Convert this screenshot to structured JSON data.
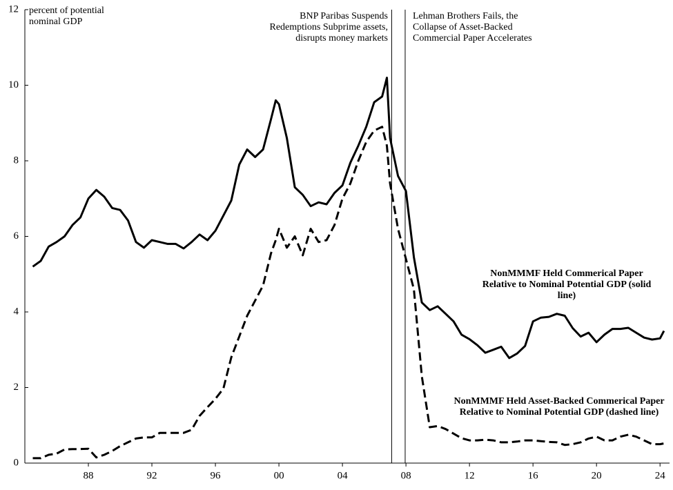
{
  "chart_data": {
    "type": "line",
    "y_unit_label": "percent of potential nominal GDP",
    "x": [
      1984.5,
      1985,
      1985.5,
      1986,
      1986.5,
      1987,
      1987.5,
      1988,
      1988.5,
      1989,
      1989.5,
      1990,
      1990.5,
      1991,
      1991.5,
      1992,
      1992.5,
      1993,
      1993.5,
      1994,
      1994.5,
      1995,
      1995.5,
      1996,
      1996.5,
      1997,
      1997.5,
      1998,
      1998.5,
      1999,
      1999.5,
      1999.8,
      2000,
      2000.5,
      2001,
      2001.5,
      2002,
      2002.5,
      2003,
      2003.5,
      2004,
      2004.5,
      2005,
      2005.5,
      2006,
      2006.5,
      2006.8,
      2007,
      2007.5,
      2008,
      2008.5,
      2009,
      2009.5,
      2010,
      2010.5,
      2011,
      2011.5,
      2012,
      2012.5,
      2013,
      2013.5,
      2014,
      2014.5,
      2015,
      2015.5,
      2016,
      2016.5,
      2017,
      2017.5,
      2018,
      2018.5,
      2019,
      2019.5,
      2020,
      2020.5,
      2021,
      2021.5,
      2022,
      2022.5,
      2023,
      2023.5,
      2024,
      2024.25
    ],
    "series": [
      {
        "name": "NonMMMF Held Commerical Paper Relative to Nominal Potential GDP (solid line)",
        "color": "#000000",
        "line_style": "solid",
        "values": [
          5.2,
          5.35,
          5.73,
          5.85,
          6.0,
          6.3,
          6.5,
          7.0,
          7.23,
          7.05,
          6.75,
          6.7,
          6.42,
          5.85,
          5.7,
          5.9,
          5.85,
          5.8,
          5.8,
          5.68,
          5.85,
          6.05,
          5.9,
          6.15,
          6.55,
          6.95,
          7.9,
          8.3,
          8.1,
          8.3,
          9.1,
          9.6,
          9.5,
          8.6,
          7.3,
          7.1,
          6.8,
          6.9,
          6.85,
          7.15,
          7.35,
          7.95,
          8.4,
          8.9,
          9.55,
          9.7,
          10.2,
          8.6,
          7.6,
          7.2,
          5.45,
          4.25,
          4.05,
          4.15,
          3.95,
          3.75,
          3.4,
          3.28,
          3.12,
          2.92,
          3.0,
          3.08,
          2.78,
          2.9,
          3.1,
          3.75,
          3.85,
          3.87,
          3.95,
          3.9,
          3.57,
          3.35,
          3.45,
          3.2,
          3.4,
          3.55,
          3.55,
          3.58,
          3.45,
          3.32,
          3.27,
          3.3,
          3.5
        ]
      },
      {
        "name": "NonMMMF Held Asset-Backed Commerical Paper Relative to Nominal Potential GDP (dashed line)",
        "color": "#000000",
        "line_style": "dashed",
        "values": [
          0.13,
          0.13,
          0.22,
          0.25,
          0.36,
          0.37,
          0.37,
          0.38,
          0.15,
          0.22,
          0.32,
          0.45,
          0.55,
          0.65,
          0.68,
          0.68,
          0.8,
          0.8,
          0.8,
          0.8,
          0.88,
          1.25,
          1.48,
          1.7,
          1.97,
          2.8,
          3.35,
          3.9,
          4.3,
          4.7,
          5.55,
          5.9,
          6.2,
          5.7,
          6.0,
          5.5,
          6.2,
          5.85,
          5.9,
          6.3,
          7.0,
          7.4,
          8.0,
          8.5,
          8.8,
          8.9,
          8.4,
          7.4,
          6.2,
          5.4,
          4.6,
          2.3,
          0.95,
          0.98,
          0.9,
          0.78,
          0.66,
          0.6,
          0.6,
          0.62,
          0.6,
          0.55,
          0.55,
          0.57,
          0.6,
          0.6,
          0.58,
          0.56,
          0.55,
          0.48,
          0.5,
          0.55,
          0.65,
          0.7,
          0.6,
          0.6,
          0.7,
          0.75,
          0.7,
          0.6,
          0.5,
          0.5,
          0.52
        ]
      }
    ],
    "events": [
      {
        "x": 2007.1,
        "label": "BNP Paribas Suspends Redemptions Subprime assets, disrupts money markets"
      },
      {
        "x": 2007.95,
        "label": "Lehman Brothers Fails, the Collapse of Asset-Backed Commercial Paper Accelerates"
      }
    ],
    "xlim": [
      1984,
      2024.6
    ],
    "ylim": [
      0,
      12
    ],
    "xticks": [
      {
        "value": 1988,
        "label": "88"
      },
      {
        "value": 1992,
        "label": "92"
      },
      {
        "value": 1996,
        "label": "96"
      },
      {
        "value": 2000,
        "label": "00"
      },
      {
        "value": 2004,
        "label": "04"
      },
      {
        "value": 2008,
        "label": "08"
      },
      {
        "value": 2012,
        "label": "12"
      },
      {
        "value": 2016,
        "label": "16"
      },
      {
        "value": 2020,
        "label": "20"
      },
      {
        "value": 2024,
        "label": "24"
      }
    ],
    "yticks": [
      0,
      2,
      4,
      6,
      8,
      10,
      12
    ],
    "grid": false
  }
}
